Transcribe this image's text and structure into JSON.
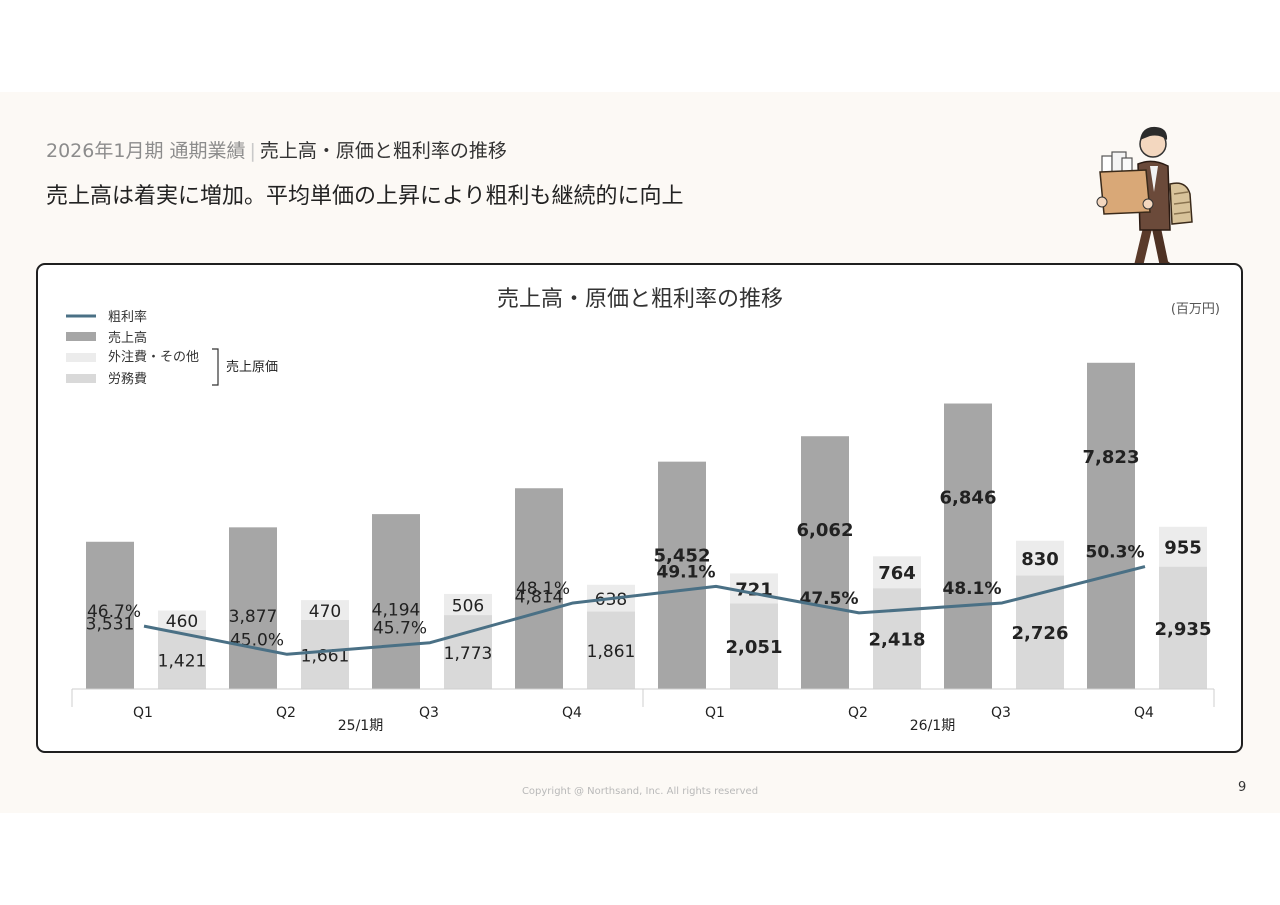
{
  "header": {
    "subtitle_period": "2026年1月期 通期業績",
    "subtitle_separator": "|",
    "subtitle_topic": "売上高・原価と粗利率の推移",
    "headline": "売上高は着実に増加。平均単価の上昇により粗利も継続的に向上"
  },
  "colors": {
    "sales": "#a6a6a6",
    "outsourcing": "#ececec",
    "labor": "#d9d9d9",
    "margin_line": "#4a7085"
  },
  "chart_data": {
    "type": "bar",
    "title": "売上高・原価と粗利率の推移",
    "unit_label": "(百万円)",
    "legend": {
      "margin": "粗利率",
      "sales": "売上高",
      "outsourcing": "外注費・その他",
      "labor": "労務費",
      "cost_group": "売上原価"
    },
    "categories": [
      "Q1",
      "Q2",
      "Q3",
      "Q4",
      "Q1",
      "Q2",
      "Q3",
      "Q4"
    ],
    "periods": [
      {
        "label": "25/1期",
        "quarters": 4
      },
      {
        "label": "26/1期",
        "quarters": 4
      }
    ],
    "series": [
      {
        "name": "売上高",
        "values": [
          3531,
          3877,
          4194,
          4814,
          5452,
          6062,
          6846,
          7823
        ],
        "labels": [
          "3,531",
          "3,877",
          "4,194",
          "4,814",
          "5,452",
          "6,062",
          "6,846",
          "7,823"
        ]
      },
      {
        "name": "労務費",
        "values": [
          1421,
          1661,
          1773,
          1861,
          2051,
          2418,
          2726,
          2935
        ],
        "labels": [
          "1,421",
          "1,661",
          "1,773",
          "1,861",
          "2,051",
          "2,418",
          "2,726",
          "2,935"
        ]
      },
      {
        "name": "外注費・その他",
        "values": [
          460,
          470,
          506,
          638,
          721,
          764,
          830,
          955
        ],
        "labels": [
          "460",
          "470",
          "506",
          "638",
          "721",
          "764",
          "830",
          "955"
        ]
      },
      {
        "name": "粗利率",
        "values": [
          46.7,
          45.0,
          45.7,
          48.1,
          49.1,
          47.5,
          48.1,
          50.3
        ],
        "labels": [
          "46.7%",
          "45.0%",
          "45.7%",
          "48.1%",
          "49.1%",
          "47.5%",
          "48.1%",
          "50.3%"
        ]
      }
    ],
    "ylim": [
      0,
      10000
    ],
    "margin_ylim": [
      40,
      52
    ]
  },
  "footer": {
    "copyright": "Copyright @ Northsand, Inc. All rights reserved",
    "page_number": "9"
  }
}
